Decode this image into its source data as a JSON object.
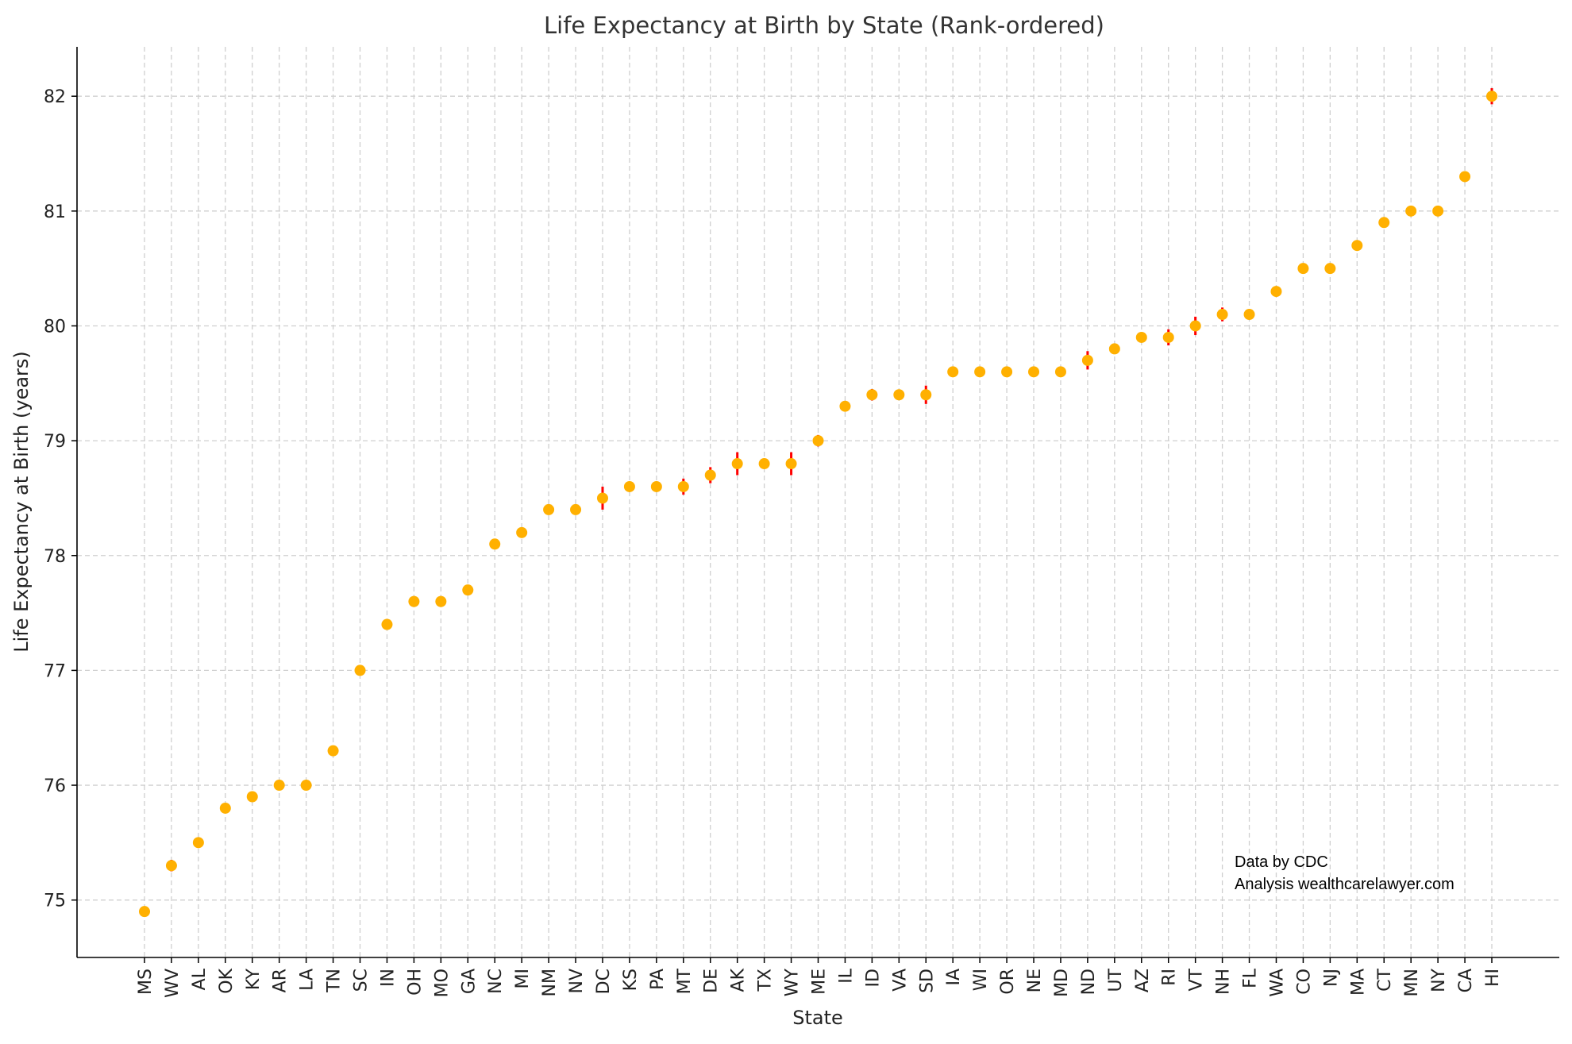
{
  "chart_data": {
    "type": "scatter",
    "title": "Life Expectancy at Birth by State (Rank-ordered)",
    "xlabel": "State",
    "ylabel": "Life Expectancy at Birth (years)",
    "ylim": [
      74.5,
      82.43
    ],
    "yticks": [
      75,
      76,
      77,
      78,
      79,
      80,
      81,
      82
    ],
    "grid": true,
    "marker_color": "#FFB000",
    "errorbar_color": "#FF0000",
    "categories": [
      "MS",
      "WV",
      "AL",
      "OK",
      "KY",
      "AR",
      "LA",
      "TN",
      "SC",
      "IN",
      "OH",
      "MO",
      "GA",
      "NC",
      "MI",
      "NM",
      "NV",
      "DC",
      "KS",
      "PA",
      "MT",
      "DE",
      "AK",
      "TX",
      "WY",
      "ME",
      "IL",
      "ID",
      "VA",
      "SD",
      "IA",
      "WI",
      "OR",
      "NE",
      "MD",
      "ND",
      "UT",
      "AZ",
      "RI",
      "VT",
      "NH",
      "FL",
      "WA",
      "CO",
      "NJ",
      "MA",
      "CT",
      "MN",
      "NY",
      "CA",
      "HI"
    ],
    "values": [
      74.9,
      75.3,
      75.5,
      75.8,
      75.9,
      76.0,
      76.0,
      76.3,
      77.0,
      77.4,
      77.6,
      77.6,
      77.7,
      78.1,
      78.2,
      78.4,
      78.4,
      78.5,
      78.6,
      78.6,
      78.6,
      78.7,
      78.8,
      78.8,
      78.8,
      79.0,
      79.3,
      79.4,
      79.4,
      79.4,
      79.6,
      79.6,
      79.6,
      79.6,
      79.6,
      79.7,
      79.8,
      79.9,
      79.9,
      80.0,
      80.1,
      80.1,
      80.3,
      80.5,
      80.5,
      80.7,
      80.9,
      81.0,
      81.0,
      81.3,
      82.0
    ],
    "errors": [
      0,
      0.05,
      0,
      0,
      0,
      0,
      0,
      0,
      0,
      0,
      0,
      0,
      0,
      0,
      0,
      0.04,
      0,
      0.1,
      0,
      0,
      0.07,
      0.07,
      0.1,
      0,
      0.1,
      0.05,
      0,
      0.05,
      0,
      0.08,
      0,
      0,
      0,
      0.04,
      0,
      0.08,
      0,
      0,
      0.07,
      0.08,
      0.06,
      0,
      0,
      0,
      0,
      0,
      0,
      0,
      0,
      0,
      0.07
    ],
    "annotations": [
      "Data by CDC",
      "Analysis wealthcarelawyer.com"
    ]
  }
}
